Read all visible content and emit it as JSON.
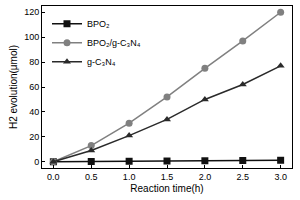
{
  "chart_data": {
    "type": "line",
    "x_label": "Reaction time(h)",
    "y_label": "H2 evolution(μmol)",
    "x": [
      0.0,
      0.5,
      1.0,
      1.5,
      2.0,
      2.5,
      3.0
    ],
    "series": [
      {
        "name": "BPO₂",
        "color": "#111111",
        "marker": "square",
        "values": [
          0,
          0.2,
          0.4,
          0.6,
          0.8,
          1.0,
          1.2
        ]
      },
      {
        "name": "BPO₂/g-C₃N₄",
        "color": "#808080",
        "marker": "circle",
        "values": [
          0,
          13,
          31,
          52,
          75,
          97,
          120
        ]
      },
      {
        "name": "g-C₃N₄",
        "color": "#2a2a2a",
        "marker": "triangle-up",
        "values": [
          0,
          9,
          21,
          34,
          50,
          62,
          77
        ]
      }
    ],
    "xlim": [
      -0.15,
      3.15
    ],
    "xticks": [
      {
        "value": 0,
        "label": "0.0"
      },
      0.5,
      {
        "value": 1,
        "label": "1.0"
      },
      1.5,
      {
        "value": 2,
        "label": "2.0"
      },
      2.5,
      {
        "value": 3,
        "label": "3.0"
      }
    ],
    "ylim": [
      -5,
      125
    ],
    "yticks": [
      0,
      20,
      40,
      60,
      80,
      100,
      120
    ],
    "grid": false,
    "legend": "top-left"
  }
}
